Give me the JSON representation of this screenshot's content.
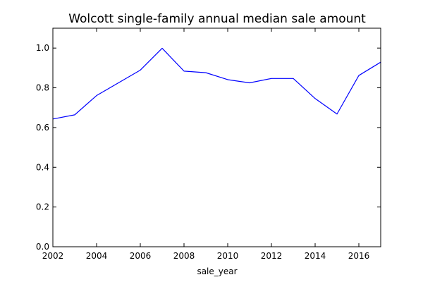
{
  "chart_data": {
    "type": "line",
    "title": "Wolcott single-family annual median sale amount",
    "xlabel": "sale_year",
    "ylabel": "",
    "xlim": [
      2002,
      2017
    ],
    "ylim": [
      0,
      1.1
    ],
    "xticks": [
      2002,
      2004,
      2006,
      2008,
      2010,
      2012,
      2014,
      2016
    ],
    "xtick_labels": [
      "2002",
      "2004",
      "2006",
      "2008",
      "2010",
      "2012",
      "2014",
      "2016"
    ],
    "yticks": [
      0,
      0.2,
      0.4,
      0.6,
      0.8,
      1.0
    ],
    "ytick_labels": [
      "0.0",
      "0.2",
      "0.4",
      "0.6",
      "0.8",
      "1.0"
    ],
    "grid": false,
    "legend": "none",
    "series": [
      {
        "color": "#0000ff",
        "x": [
          2002,
          2003,
          2004,
          2005,
          2006,
          2007,
          2008,
          2009,
          2010,
          2011,
          2012,
          2013,
          2014,
          2015,
          2016,
          2017
        ],
        "y": [
          0.643,
          0.664,
          0.761,
          0.825,
          0.889,
          0.999,
          0.884,
          0.876,
          0.841,
          0.825,
          0.847,
          0.847,
          0.746,
          0.668,
          0.862,
          0.929
        ]
      }
    ]
  }
}
